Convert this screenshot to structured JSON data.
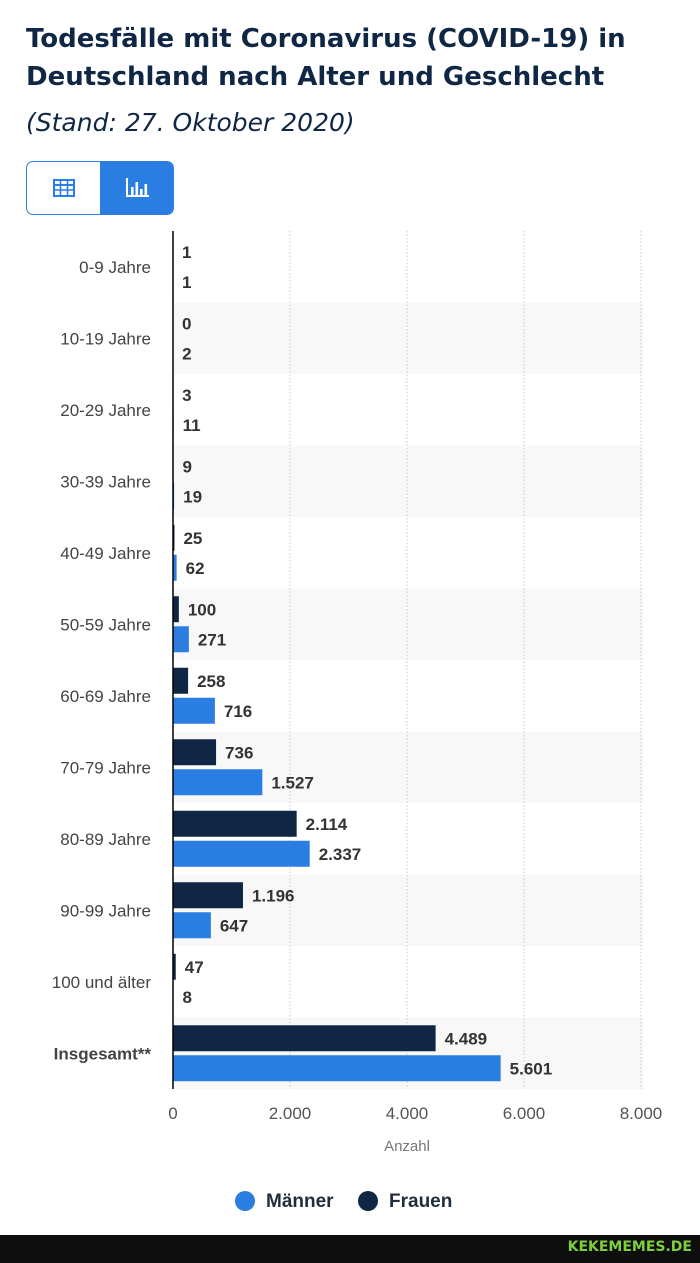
{
  "header": {
    "title": "Todesfälle mit Coronavirus (COVID-19) in Deutschland nach Alter und Geschlecht",
    "subtitle": "(Stand: 27. Oktober 2020)"
  },
  "toggle": {
    "table_icon": "table-icon",
    "chart_icon": "bar-chart-icon",
    "active": "chart"
  },
  "chart_data": {
    "type": "bar",
    "orientation": "horizontal",
    "categories": [
      "0-9 Jahre",
      "10-19 Jahre",
      "20-29 Jahre",
      "30-39 Jahre",
      "40-49 Jahre",
      "50-59 Jahre",
      "60-69 Jahre",
      "70-79 Jahre",
      "80-89 Jahre",
      "90-99 Jahre",
      "100 und älter",
      "Insgesamt**"
    ],
    "bold_categories": [
      "Insgesamt**"
    ],
    "series": [
      {
        "name": "Frauen",
        "color": "#0f2744",
        "values": [
          1,
          0,
          3,
          9,
          25,
          100,
          258,
          736,
          2114,
          1196,
          47,
          4489
        ],
        "labels": [
          "1",
          "0",
          "3",
          "9",
          "25",
          "100",
          "258",
          "736",
          "2.114",
          "1.196",
          "47",
          "4.489"
        ]
      },
      {
        "name": "Männer",
        "color": "#2a7de1",
        "values": [
          1,
          2,
          11,
          19,
          62,
          271,
          716,
          1527,
          2337,
          647,
          8,
          5601
        ],
        "labels": [
          "1",
          "2",
          "11",
          "19",
          "62",
          "271",
          "716",
          "1.527",
          "2.337",
          "647",
          "8",
          "5.601"
        ]
      }
    ],
    "xlim": [
      0,
      8000
    ],
    "xticks": [
      0,
      2000,
      4000,
      6000,
      8000
    ],
    "xtick_labels": [
      "0",
      "2.000",
      "4.000",
      "6.000",
      "8.000"
    ],
    "xlabel": "Anzahl",
    "grid": true,
    "legend": {
      "position": "bottom",
      "entries": [
        {
          "name": "Männer",
          "color": "#2a7de1"
        },
        {
          "name": "Frauen",
          "color": "#0f2744"
        }
      ]
    }
  },
  "watermark": "KEKEMEMES.DE"
}
